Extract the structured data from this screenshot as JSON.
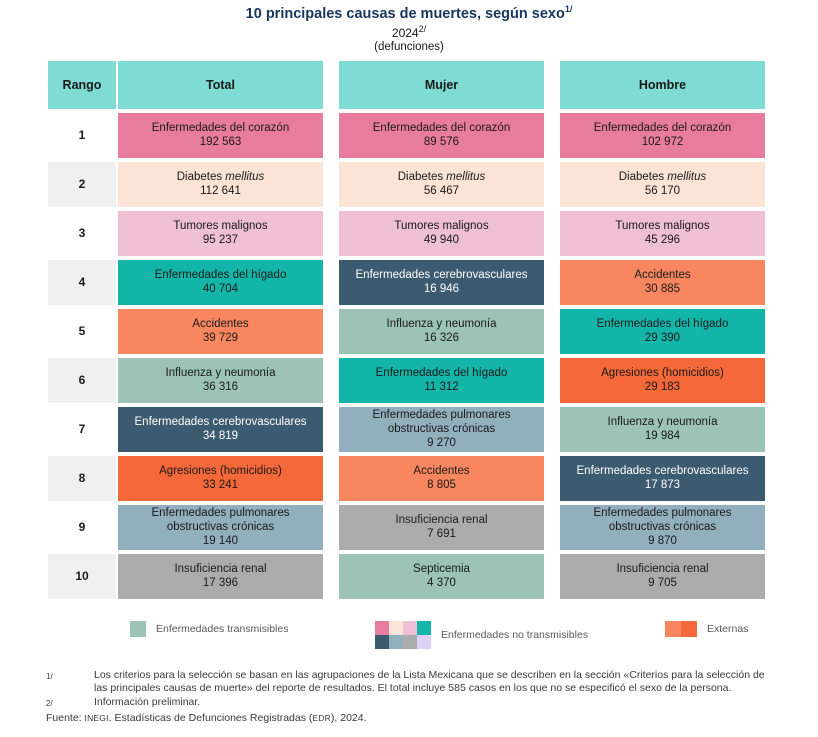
{
  "title": {
    "text": "10 principales causas de muertes, según sexo",
    "sup": "1/"
  },
  "subtitle": {
    "year": "2024",
    "sup": "2/",
    "unit": "(defunciones)"
  },
  "colors": {
    "header_teal": "#7EDCD4",
    "pink": "#E87C9E",
    "peach": "#FBE3D5",
    "lightpink": "#EFBFD3",
    "teal": "#14B5A9",
    "salmon": "#F8875F",
    "sage": "#9CC3B5",
    "slate": "#3C5A70",
    "orange": "#F4683A",
    "grayblue": "#92AFBE",
    "gray": "#ACACAC",
    "lavender": "#DCD2F4",
    "rank_alt": "#F0F0F0",
    "title_navy": "#17365D"
  },
  "table": {
    "headers": [
      "Rango",
      "Total",
      "Mujer",
      "Hombre"
    ],
    "rows": [
      {
        "rank": "1",
        "cells": [
          {
            "name": "Enfermedades del corazón",
            "value": "192 563",
            "color": "pink"
          },
          {
            "name": "Enfermedades del corazón",
            "value": "89 576",
            "color": "pink"
          },
          {
            "name": "Enfermedades del corazón",
            "value": "102 972",
            "color": "pink"
          }
        ]
      },
      {
        "rank": "2",
        "cells": [
          {
            "name": "Diabetes mellitus",
            "italic": "mellitus",
            "value": "112 641",
            "color": "peach"
          },
          {
            "name": "Diabetes mellitus",
            "italic": "mellitus",
            "value": "56 467",
            "color": "peach"
          },
          {
            "name": "Diabetes mellitus",
            "italic": "mellitus",
            "value": "56 170",
            "color": "peach"
          }
        ]
      },
      {
        "rank": "3",
        "cells": [
          {
            "name": "Tumores malignos",
            "value": "95 237",
            "color": "lightpink"
          },
          {
            "name": "Tumores malignos",
            "value": "49 940",
            "color": "lightpink"
          },
          {
            "name": "Tumores malignos",
            "value": "45 296",
            "color": "lightpink"
          }
        ]
      },
      {
        "rank": "4",
        "cells": [
          {
            "name": "Enfermedades del hígado",
            "value": "40 704",
            "color": "teal"
          },
          {
            "name": "Enfermedades cerebrovasculares",
            "value": "16 946",
            "color": "slate"
          },
          {
            "name": "Accidentes",
            "value": "30 885",
            "color": "salmon"
          }
        ]
      },
      {
        "rank": "5",
        "cells": [
          {
            "name": "Accidentes",
            "value": "39 729",
            "color": "salmon"
          },
          {
            "name": "Influenza y neumonía",
            "value": "16 326",
            "color": "sage"
          },
          {
            "name": "Enfermedades del hígado",
            "value": "29 390",
            "color": "teal"
          }
        ]
      },
      {
        "rank": "6",
        "cells": [
          {
            "name": "Influenza y neumonía",
            "value": "36 316",
            "color": "sage"
          },
          {
            "name": "Enfermedades del hígado",
            "value": "11 312",
            "color": "teal"
          },
          {
            "name": "Agresiones (homicidios)",
            "value": "29 183",
            "color": "orange"
          }
        ]
      },
      {
        "rank": "7",
        "cells": [
          {
            "name": "Enfermedades cerebrovasculares",
            "value": "34 819",
            "color": "slate"
          },
          {
            "name": "Enfermedades pulmonares obstructivas crónicas",
            "value": "9 270",
            "color": "grayblue"
          },
          {
            "name": "Influenza y neumonía",
            "value": "19 984",
            "color": "sage"
          }
        ]
      },
      {
        "rank": "8",
        "cells": [
          {
            "name": "Agresiones (homicidios)",
            "value": "33 241",
            "color": "orange"
          },
          {
            "name": "Accidentes",
            "value": "8 805",
            "color": "salmon"
          },
          {
            "name": "Enfermedades cerebrovasculares",
            "value": "17 873",
            "color": "slate"
          }
        ]
      },
      {
        "rank": "9",
        "cells": [
          {
            "name": "Enfermedades pulmonares obstructivas crónicas",
            "value": "19 140",
            "color": "grayblue"
          },
          {
            "name": "Insuficiencia renal",
            "value": "7 691",
            "color": "gray"
          },
          {
            "name": "Enfermedades pulmonares obstructivas crónicas",
            "value": "9 870",
            "color": "grayblue"
          }
        ]
      },
      {
        "rank": "10",
        "cells": [
          {
            "name": "Insuficiencia renal",
            "value": "17 396",
            "color": "gray"
          },
          {
            "name": "Septicemia",
            "value": "4 370",
            "color": "sage"
          },
          {
            "name": "Insuficiencia renal",
            "value": "9 705",
            "color": "gray"
          }
        ]
      }
    ]
  },
  "legend": [
    {
      "label": "Enfermedades transmisibles",
      "type": "single",
      "swatches": [
        "sage"
      ]
    },
    {
      "label": "Enfermedades no transmisibles",
      "type": "grid",
      "swatches": [
        "pink",
        "peach",
        "lightpink",
        "teal",
        "slate",
        "grayblue",
        "gray",
        "lavender"
      ]
    },
    {
      "label": "Externas",
      "type": "pair",
      "swatches": [
        "salmon",
        "orange"
      ]
    }
  ],
  "footnotes": [
    {
      "marker": "1/",
      "text": "Los criterios para la selección se basan en las agrupaciones de la Lista Mexicana que se describen en la sección «Criterios para la selección de las principales causas de muerte» del reporte de resultados. El total incluye 585 casos en los que no se especificó el sexo de la persona."
    },
    {
      "marker": "2/",
      "text": "Información preliminar."
    }
  ],
  "source": {
    "prefix": "Fuente: ",
    "inegi": "INEGI",
    "middle": ". Estadísticas de Defunciones Registradas (",
    "edr": "EDR",
    "suffix": "), 2024."
  },
  "chart_data": {
    "type": "table",
    "title": "10 principales causas de muertes, según sexo (2024, defunciones)",
    "categories": [
      "Enfermedades del corazón",
      "Diabetes mellitus",
      "Tumores malignos",
      "Enfermedades del hígado",
      "Accidentes",
      "Influenza y neumonía",
      "Enfermedades cerebrovasculares",
      "Agresiones (homicidios)",
      "Enfermedades pulmonares obstructivas crónicas",
      "Insuficiencia renal",
      "Septicemia"
    ],
    "series": [
      {
        "name": "Total",
        "values": [
          192563,
          112641,
          95237,
          40704,
          39729,
          36316,
          34819,
          33241,
          19140,
          17396,
          null
        ]
      },
      {
        "name": "Mujer",
        "values": [
          89576,
          56467,
          49940,
          11312,
          8805,
          16326,
          16946,
          null,
          9270,
          7691,
          4370
        ]
      },
      {
        "name": "Hombre",
        "values": [
          102972,
          56170,
          45296,
          29390,
          30885,
          19984,
          17873,
          29183,
          9870,
          9705,
          null
        ]
      }
    ]
  }
}
